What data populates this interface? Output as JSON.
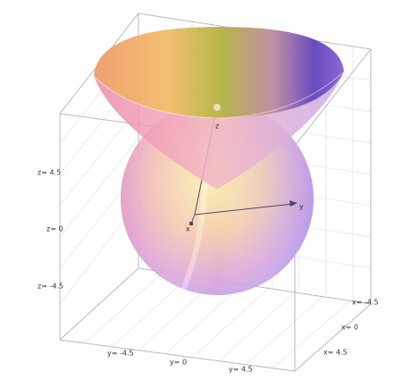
{
  "axes": {
    "z_labels": [
      "z= 4.5",
      "z= 0",
      "z= -4.5"
    ],
    "y_labels": [
      "y= -4.5",
      "y= 0",
      "y= 4.5"
    ],
    "x_labels": [
      "x= -4.5",
      "x= 0",
      "x= 4.5"
    ],
    "axis_names": [
      "z",
      "y",
      "x"
    ]
  }
}
